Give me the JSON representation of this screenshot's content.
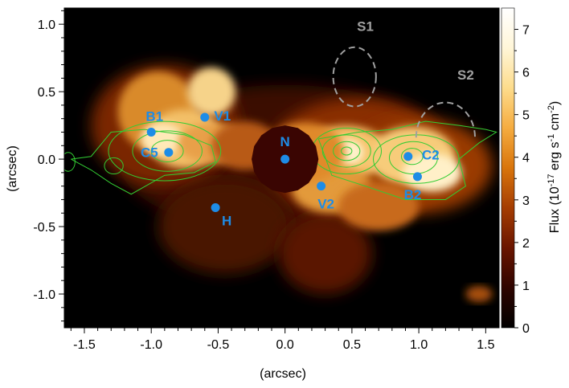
{
  "chart_data": {
    "type": "heatmap",
    "xlabel": "(arcsec)",
    "ylabel": "(arcsec)",
    "xlim": [
      -1.65,
      1.6
    ],
    "ylim": [
      -1.25,
      1.12
    ],
    "x_ticks": [
      -1.5,
      -1.0,
      -0.5,
      0.0,
      0.5,
      1.0,
      1.5
    ],
    "y_ticks": [
      -1.0,
      -0.5,
      0.0,
      0.5,
      1.0
    ],
    "x_tick_labels": [
      "-1.5",
      "-1.0",
      "-0.5",
      "0.0",
      "0.5",
      "1.0",
      "1.5"
    ],
    "y_tick_labels": [
      "-1.0",
      "-0.5",
      "0.0",
      "0.5",
      "1.0"
    ],
    "colorbar": {
      "label_main": "Flux (10",
      "label_exp1": "-17",
      "label_mid": " erg s",
      "label_exp2": "-1",
      "label_cm": " cm",
      "label_exp3": "-2",
      "label_end": ")",
      "min": 0,
      "max": 7.5,
      "ticks": [
        0,
        1,
        2,
        3,
        4,
        5,
        6,
        7
      ],
      "tick_labels": [
        "0",
        "1",
        "2",
        "3",
        "4",
        "5",
        "6",
        "7"
      ],
      "colormap": [
        "#000000",
        "#2e0400",
        "#6a1500",
        "#a53d02",
        "#d9750c",
        "#f5ac40",
        "#fddc8c",
        "#fff6d8",
        "#ffffff"
      ]
    },
    "points": [
      {
        "label": "N",
        "x": 0.0,
        "y": 0.0
      },
      {
        "label": "B1",
        "x": -1.0,
        "y": 0.2
      },
      {
        "label": "V1",
        "x": -0.6,
        "y": 0.31
      },
      {
        "label": "C5",
        "x": -0.87,
        "y": 0.05
      },
      {
        "label": "H",
        "x": -0.52,
        "y": -0.36
      },
      {
        "label": "V2",
        "x": 0.27,
        "y": -0.2
      },
      {
        "label": "C2",
        "x": 0.92,
        "y": 0.02
      },
      {
        "label": "B2",
        "x": 0.99,
        "y": -0.13
      }
    ],
    "regions": [
      {
        "label": "S1",
        "cx": 0.52,
        "cy": 0.61,
        "rx": 0.16,
        "ry": 0.22
      },
      {
        "label": "S2",
        "cx": 1.2,
        "cy": 0.21,
        "rx": 0.22,
        "ry": 0.26
      }
    ],
    "nucleus_mask": {
      "cx": 0.0,
      "cy": 0.0,
      "r": 0.25
    },
    "colors": {
      "marker": "#1e8ce6",
      "label": "#1e8ce6",
      "contour": "#33cc33",
      "region": "#a0a0a0",
      "nucleus": "#3a0502"
    }
  }
}
